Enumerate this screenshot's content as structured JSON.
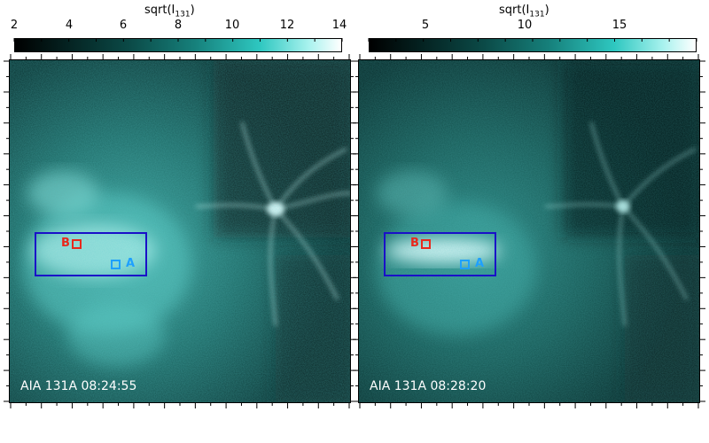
{
  "colorbars": [
    {
      "title_main": "sqrt(I",
      "title_sub": "131",
      "title_close": ")",
      "ticks": [
        "2",
        "4",
        "6",
        "8",
        "10",
        "12",
        "14"
      ]
    },
    {
      "title_main": "sqrt(I",
      "title_sub": "131",
      "title_close": ")",
      "ticks": [
        "5",
        "10",
        "15"
      ]
    }
  ],
  "panels": [
    {
      "caption": "AIA 131A 08:24:55",
      "roi_b_label": "B",
      "roi_a_label": "A"
    },
    {
      "caption": "AIA 131A 08:28:20",
      "roi_b_label": "B",
      "roi_a_label": "A"
    }
  ],
  "colors": {
    "box": "#1a10c8",
    "roi_b": "#e8281c",
    "roi_a": "#1ea0ff",
    "colormap_mid": "#19b8b0",
    "colormap_high": "#ffffff"
  },
  "colormap": "aia-131-teal"
}
